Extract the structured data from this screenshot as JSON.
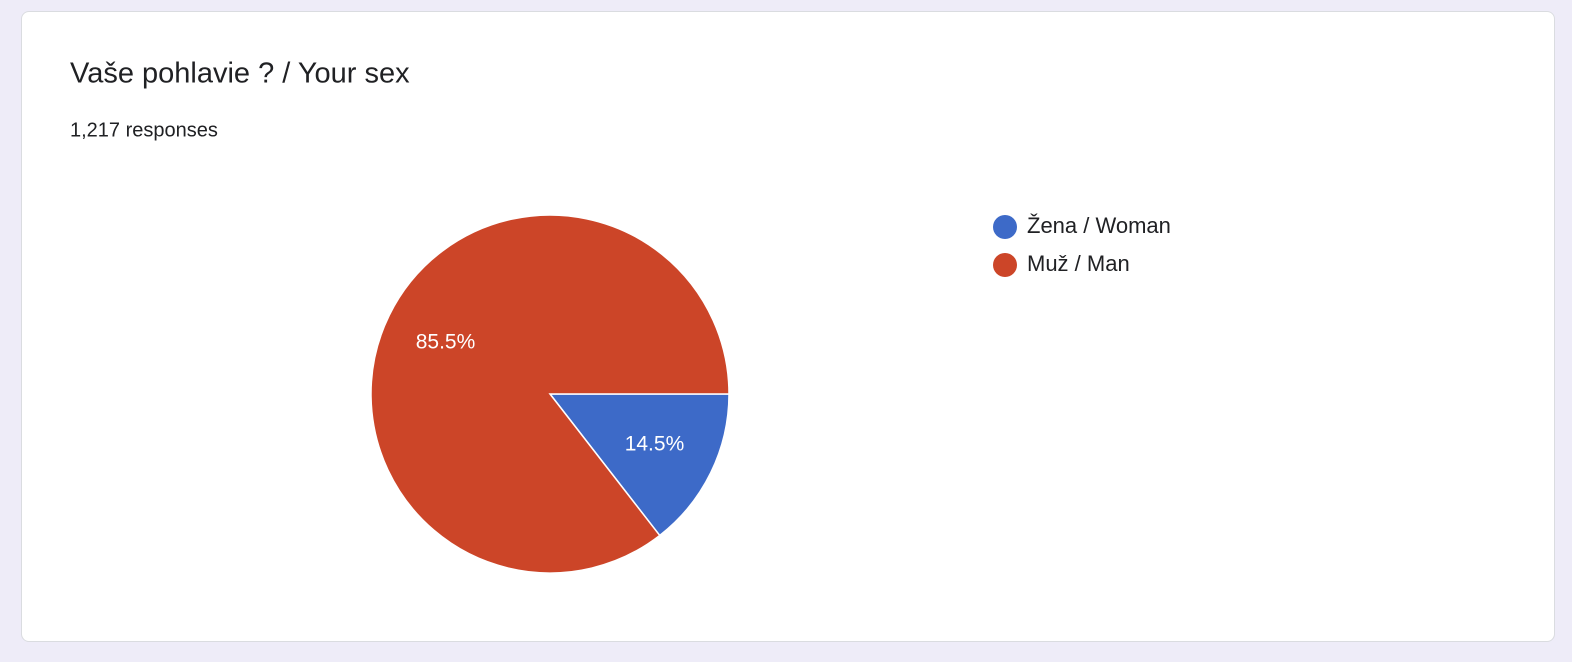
{
  "chart_data": {
    "type": "pie",
    "title": "Vaše pohlavie ? / Your sex",
    "subtitle": "1,217 responses",
    "categories": [
      "Žena / Woman",
      "Muž / Man"
    ],
    "values": [
      14.5,
      85.5
    ],
    "value_labels": [
      "14.5%",
      "85.5%"
    ],
    "colors": [
      "#3d6ac8",
      "#cc4528"
    ],
    "legend": "right"
  }
}
